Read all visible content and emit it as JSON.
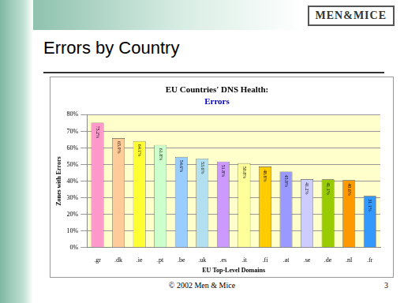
{
  "header": {
    "title": "Errors by Country",
    "logo": "MEN&MICE"
  },
  "chart_data": {
    "type": "bar",
    "title": "EU Countries' DNS Health:",
    "subtitle": "Errors",
    "x_label": "EU Top-Level Domains",
    "y_label": "Zones with Errors",
    "categories": [
      ".gr",
      ".dk",
      ".ie",
      ".pt",
      ".be",
      ".uk",
      ".es",
      ".it",
      ".fi",
      ".at",
      ".se",
      ".de",
      ".nl",
      ".fr"
    ],
    "values": [
      75.2,
      65.9,
      64.1,
      61.8,
      54.6,
      53.6,
      51.8,
      50.8,
      48.8,
      45.8,
      41.2,
      41.1,
      40.6,
      31.1
    ],
    "value_labels": [
      "75.2%",
      "65.9%",
      "64.1%",
      "61.8%",
      "54.6%",
      "53.6%",
      "51.8%",
      "50.8%",
      "48.8%",
      "45.8%",
      "41.2%",
      "41.1%",
      "40.6%",
      "31.1%"
    ],
    "colors": [
      "#ff99cc",
      "#ffcc99",
      "#ffff33",
      "#ccffcc",
      "#99ccff",
      "#b3e0f0",
      "#cc99ff",
      "#ffff99",
      "#ffcc00",
      "#9999ff",
      "#ccccff",
      "#99cc00",
      "#ff9900",
      "#3399ff"
    ],
    "ylim": [
      0,
      80
    ],
    "yticks": [
      {
        "value": 0,
        "label": "0%"
      },
      {
        "value": 10,
        "label": "10%"
      },
      {
        "value": 20,
        "label": "20%"
      },
      {
        "value": 30,
        "label": "30%"
      },
      {
        "value": 40,
        "label": "40%"
      },
      {
        "value": 50,
        "label": "50%"
      },
      {
        "value": 60,
        "label": "60%"
      },
      {
        "value": 70,
        "label": "70%"
      },
      {
        "value": 80,
        "label": "80%"
      }
    ],
    "grid": true,
    "data_labels": true
  },
  "footer": {
    "text": "© 2002 Men & Mice",
    "page": "3"
  }
}
